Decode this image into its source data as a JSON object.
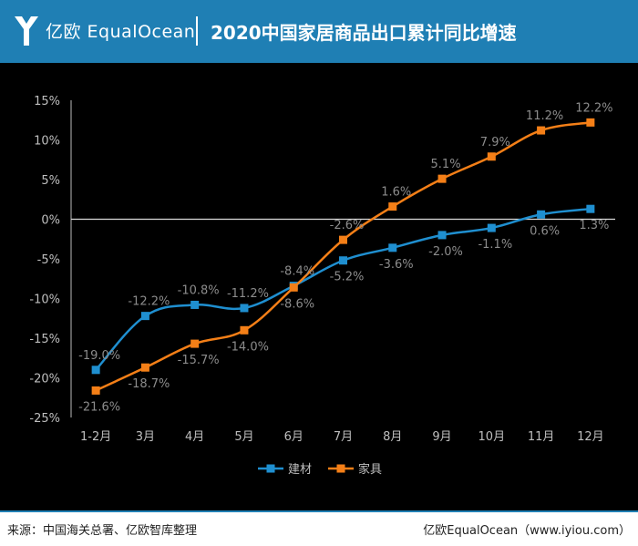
{
  "header": {
    "logo_text": "亿欧 EqualOcean",
    "title": "2020中国家居商品出口累计同比增速"
  },
  "footer": {
    "source": "来源：中国海关总署、亿欧智库整理",
    "brand": "亿欧EqualOcean（www.iyiou.com）"
  },
  "colors": {
    "header": "#1f7fb4",
    "series1": "#1f8fd0",
    "series2": "#f47f17"
  },
  "chart_data": {
    "type": "line",
    "categories": [
      "1-2月",
      "3月",
      "4月",
      "5月",
      "6月",
      "7月",
      "8月",
      "9月",
      "10月",
      "11月",
      "12月"
    ],
    "ylim": [
      -25,
      15
    ],
    "yticks": [
      15,
      10,
      5,
      0,
      -5,
      -10,
      -15,
      -20,
      -25
    ],
    "ytick_labels": [
      "15%",
      "10%",
      "5%",
      "0%",
      "-5%",
      "-10%",
      "-15%",
      "-20%",
      "-25%"
    ],
    "legend_position": "bottom",
    "series": [
      {
        "name": "建材",
        "values": [
          -19.0,
          -12.2,
          -10.8,
          -11.2,
          -8.4,
          -5.2,
          -3.6,
          -2.0,
          -1.1,
          0.6,
          1.3
        ],
        "labels": [
          "-19.0%",
          "-12.2%",
          "-10.8%",
          "-11.2%",
          "-8.4%",
          "-5.2%",
          "-3.6%",
          "-2.0%",
          "-1.1%",
          "0.6%",
          "1.3%"
        ]
      },
      {
        "name": "家具",
        "values": [
          -21.6,
          -18.7,
          -15.7,
          -14.0,
          -8.6,
          -2.6,
          1.6,
          5.1,
          7.9,
          11.2,
          12.2
        ],
        "labels": [
          "-21.6%",
          "-18.7%",
          "-15.7%",
          "-14.0%",
          "-8.6%",
          "-2.6%",
          "1.6%",
          "5.1%",
          "7.9%",
          "11.2%",
          "12.2%"
        ]
      }
    ]
  }
}
